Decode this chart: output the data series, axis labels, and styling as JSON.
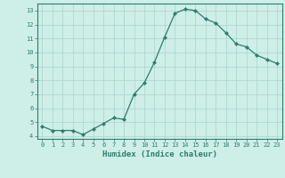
{
  "x": [
    0,
    1,
    2,
    3,
    4,
    5,
    6,
    7,
    8,
    9,
    10,
    11,
    12,
    13,
    14,
    15,
    16,
    17,
    18,
    19,
    20,
    21,
    22,
    23
  ],
  "y": [
    4.7,
    4.4,
    4.4,
    4.4,
    4.1,
    4.5,
    4.9,
    5.3,
    5.2,
    7.0,
    7.8,
    9.3,
    11.1,
    12.8,
    13.1,
    13.0,
    12.4,
    12.1,
    11.4,
    10.6,
    10.4,
    9.8,
    9.5,
    9.2
  ],
  "xlabel": "Humidex (Indice chaleur)",
  "ylim": [
    3.8,
    13.5
  ],
  "xlim": [
    -0.5,
    23.5
  ],
  "yticks": [
    4,
    5,
    6,
    7,
    8,
    9,
    10,
    11,
    12,
    13
  ],
  "xticks": [
    0,
    1,
    2,
    3,
    4,
    5,
    6,
    7,
    8,
    9,
    10,
    11,
    12,
    13,
    14,
    15,
    16,
    17,
    18,
    19,
    20,
    21,
    22,
    23
  ],
  "line_color": "#2e7d6e",
  "marker_color": "#2e7d6e",
  "bg_color": "#ceeee8",
  "grid_color": "#aad4ce",
  "axis_color": "#2e7d6e",
  "tick_color": "#2e7d6e",
  "label_color": "#2e7d6e",
  "tick_fontsize": 5.0,
  "xlabel_fontsize": 6.5
}
